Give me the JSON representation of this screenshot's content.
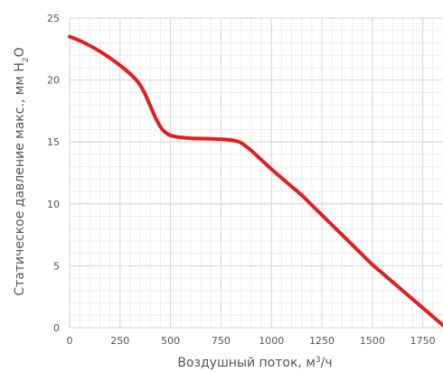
{
  "chart_data": {
    "type": "line",
    "xlabel_parts": [
      "Воздушный поток, м",
      "3",
      "/ч"
    ],
    "ylabel_parts": [
      "Статическое давление макс., мм H",
      "2",
      "O"
    ],
    "xlim": [
      0,
      1850
    ],
    "ylim": [
      0,
      25
    ],
    "x_ticks": [
      0,
      250,
      500,
      750,
      1000,
      1250,
      1500,
      1750
    ],
    "y_ticks": [
      0,
      5,
      10,
      15,
      20,
      25
    ],
    "x_minor_step": 50,
    "y_minor_step": 1,
    "grid": true,
    "series": [
      {
        "color": "#e31e1e",
        "x": [
          0,
          60,
          120,
          180,
          240,
          300,
          340,
          370,
          400,
          430,
          460,
          490,
          520,
          560,
          600,
          650,
          700,
          750,
          800,
          840,
          870,
          900,
          940,
          980,
          1000,
          1050,
          1100,
          1150,
          1200,
          1250,
          1300,
          1350,
          1400,
          1450,
          1500,
          1550,
          1600,
          1650,
          1700,
          1750,
          1800,
          1850
        ],
        "y": [
          23.5,
          23.1,
          22.6,
          22.0,
          21.3,
          20.5,
          19.8,
          19.0,
          17.9,
          16.8,
          16.0,
          15.6,
          15.45,
          15.35,
          15.3,
          15.27,
          15.25,
          15.22,
          15.15,
          15.0,
          14.7,
          14.3,
          13.7,
          13.1,
          12.8,
          12.1,
          11.4,
          10.7,
          9.9,
          9.1,
          8.3,
          7.5,
          6.7,
          5.9,
          5.1,
          4.4,
          3.7,
          3.0,
          2.3,
          1.6,
          0.9,
          0.2
        ]
      }
    ]
  }
}
